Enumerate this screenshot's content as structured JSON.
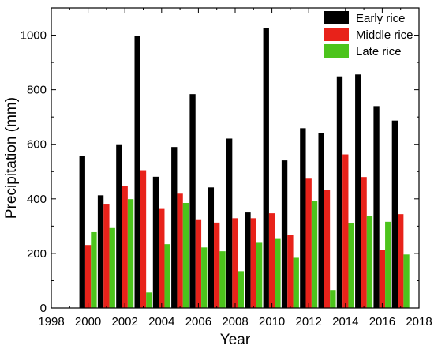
{
  "chart_data": {
    "type": "bar",
    "title": "",
    "xlabel": "Year",
    "ylabel": "Precipitation (mm)",
    "xlim": [
      1998,
      2018
    ],
    "ylim": [
      0,
      1100
    ],
    "x_ticks": [
      "1998",
      "2000",
      "2002",
      "2004",
      "2006",
      "2008",
      "2010",
      "2012",
      "2014",
      "2016",
      "2018"
    ],
    "y_ticks": [
      "0",
      "200",
      "400",
      "600",
      "800",
      "1000"
    ],
    "legend_position": "top-right",
    "grid": false,
    "categories": [
      2000,
      2001,
      2002,
      2003,
      2004,
      2005,
      2006,
      2007,
      2008,
      2009,
      2010,
      2011,
      2012,
      2013,
      2014,
      2015,
      2016,
      2017
    ],
    "series": [
      {
        "name": "Early rice",
        "color": "#000000",
        "values": [
          557,
          413,
          600,
          998,
          481,
          590,
          784,
          442,
          621,
          350,
          1025,
          541,
          659,
          641,
          849,
          856,
          740,
          687
        ]
      },
      {
        "name": "Middle rice",
        "color": "#e8221a",
        "values": [
          231,
          382,
          448,
          505,
          363,
          419,
          325,
          313,
          329,
          329,
          347,
          268,
          474,
          434,
          563,
          480,
          213,
          344
        ]
      },
      {
        "name": "Late rice",
        "color": "#4cc41c",
        "values": [
          278,
          293,
          399,
          57,
          234,
          385,
          222,
          208,
          135,
          239,
          253,
          184,
          393,
          66,
          311,
          336,
          316,
          196
        ]
      }
    ]
  }
}
